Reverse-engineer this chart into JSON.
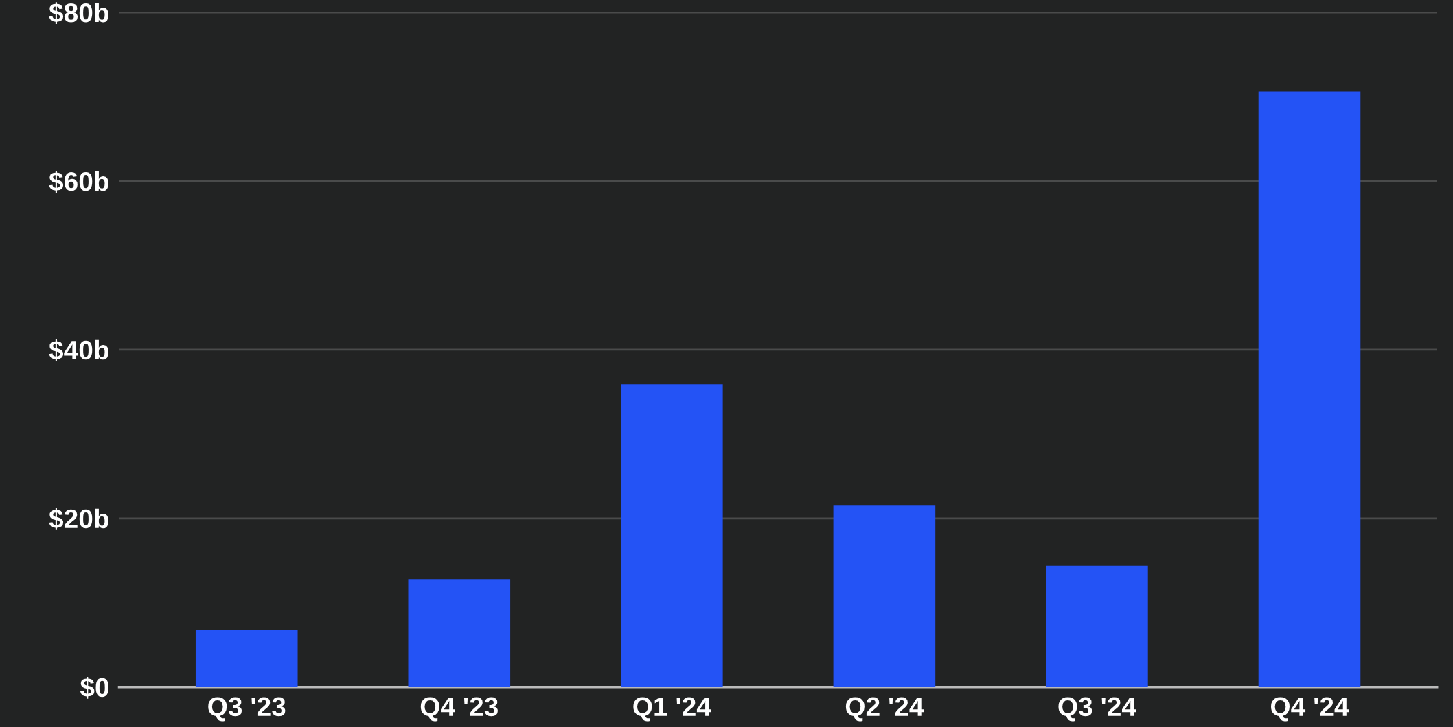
{
  "chart_data": {
    "type": "bar",
    "categories": [
      "Q3 '23",
      "Q4 '23",
      "Q1 '24",
      "Q2 '24",
      "Q3 '24",
      "Q4 '24"
    ],
    "values": [
      6.8,
      12.8,
      35.9,
      21.5,
      14.4,
      70.6
    ],
    "color": "#2453f5",
    "ylim": [
      0,
      80
    ],
    "yticks": [
      {
        "value": 0,
        "label": "$0"
      },
      {
        "value": 20,
        "label": "$20b"
      },
      {
        "value": 40,
        "label": "$40b"
      },
      {
        "value": 60,
        "label": "$60b"
      },
      {
        "value": 80,
        "label": "$80b"
      }
    ],
    "grid": "y",
    "legend": false
  }
}
